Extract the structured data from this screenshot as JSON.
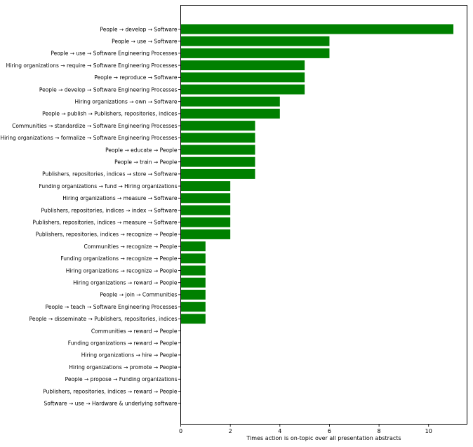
{
  "chart_data": {
    "type": "bar",
    "orientation": "horizontal",
    "categories": [
      "People → develop → Software",
      "People → use → Software",
      "People → use → Software Engineering Processes",
      "Hiring organizations → require → Software Engineering Processes",
      "People → reproduce → Software",
      "People → develop → Software Engineering Processes",
      "Hiring organizations → own → Software",
      "People → publish → Publishers, repositories, indices",
      "Communities → standardize → Software Engineering Processes",
      "Hiring organizations → formalize → Software Engineering Processes",
      "People → educate → People",
      "People → train → People",
      "Publishers, repositories, indices → store → Software",
      "Funding organizations → fund → Hiring organizations",
      "Hiring organizations → measure → Software",
      "Publishers, repositories, indices → index → Software",
      "Publishers, repositories, indices → measure → Software",
      "Publishers, repositories, indices → recognize → People",
      "Communities → recognize → People",
      "Funding organizations → recognize → People",
      "Hiring organizations → recognize → People",
      "Hiring organizations → reward → People",
      "People → join → Communities",
      "People → teach → Software Engineering Processes",
      "People → disseminate → Publishers, repositories, indices",
      "Communities → reward → People",
      "Funding organizations → reward → People",
      "Hiring organizations → hire → People",
      "Hiring organizations → promote → People",
      "People → propose → Funding organizations",
      "Publishers, repositories, indices → reward → People",
      "Software → use → Hardware & underlying software"
    ],
    "values": [
      11,
      6,
      6,
      5,
      5,
      5,
      4,
      4,
      3,
      3,
      3,
      3,
      3,
      2,
      2,
      2,
      2,
      2,
      1,
      1,
      1,
      1,
      1,
      1,
      1,
      0,
      0,
      0,
      0,
      0,
      0,
      0
    ],
    "xlabel": "Times action is on-topic over all presentation abstracts",
    "ylabel": "",
    "title": "",
    "xlim": [
      0,
      11.55
    ],
    "xticks": [
      0,
      2,
      4,
      6,
      8,
      10
    ],
    "bar_color": "#008000",
    "grid": false,
    "legend": "none"
  }
}
